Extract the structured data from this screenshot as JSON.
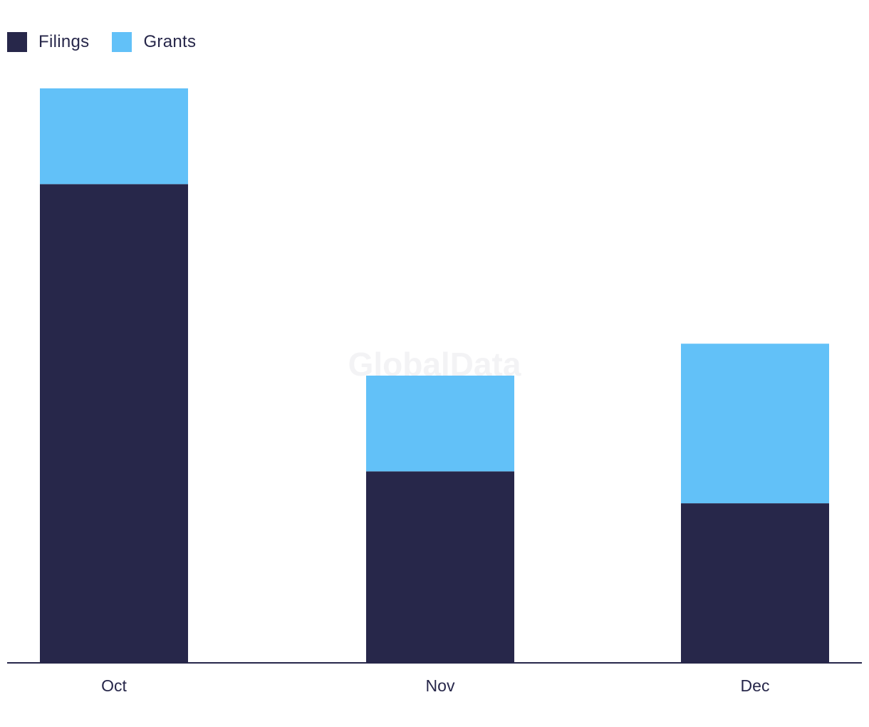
{
  "colors": {
    "filings": "#27274a",
    "grants": "#62c1f8",
    "axis": "#27274a"
  },
  "watermark": "GlobalData",
  "chart_data": {
    "type": "bar",
    "stacked": true,
    "categories": [
      "Oct",
      "Nov",
      "Dec"
    ],
    "series": [
      {
        "name": "Filings",
        "values": [
          30,
          12,
          10
        ]
      },
      {
        "name": "Grants",
        "values": [
          6,
          6,
          10
        ]
      }
    ],
    "ylim": [
      0,
      36
    ],
    "legend_position": "top-left",
    "grid": false,
    "xlabel": "",
    "ylabel": ""
  }
}
